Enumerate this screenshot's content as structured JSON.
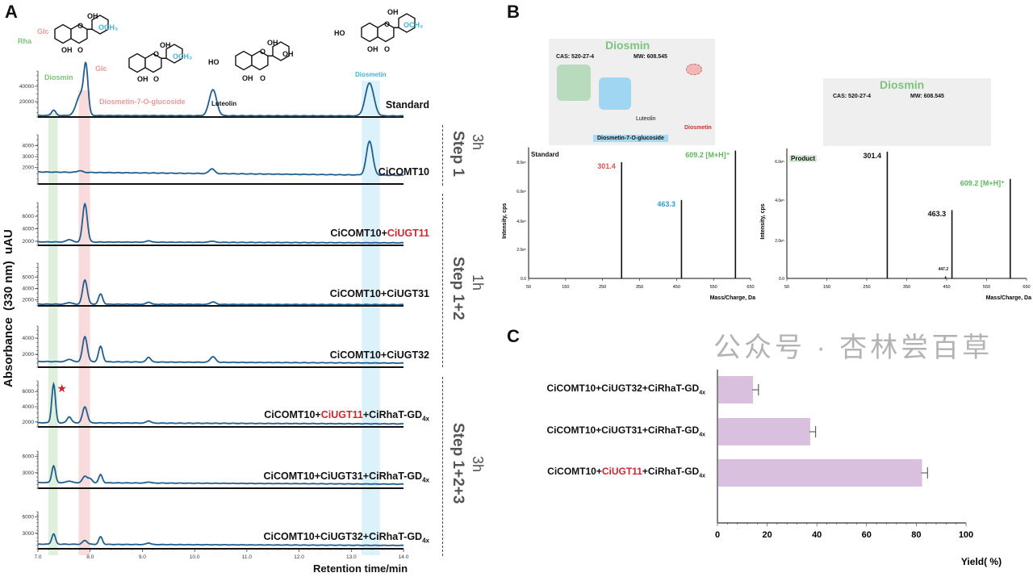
{
  "panels": {
    "a": "A",
    "b": "B",
    "c": "C"
  },
  "panel_a": {
    "y_axis_label": "Absorbance  (330 nm)  uAU",
    "x_axis_label": "Retention time/min",
    "compounds": {
      "diosmin": "Diosmin",
      "d7g": "Diosmetin-7-O-glucoside",
      "luteolin": "Luteolin",
      "diosmetin": "Diosmetin",
      "rha": "Rha",
      "glc": "Glc",
      "oh": "OH",
      "ho": "HO",
      "o": "O",
      "och3": "OCH₃"
    },
    "steps": [
      {
        "step": "Step 1",
        "time": "3h"
      },
      {
        "step": "Step 1+2",
        "time": "1h"
      },
      {
        "step": "Step 1+2+3",
        "time": "3h"
      }
    ],
    "colors": {
      "trace": "#1f5f8f",
      "diosmin_band": "#d4ecd2",
      "d7g_band": "#f8cfcf",
      "diosmetin_band": "#cfeefa",
      "star": "#c8242c"
    }
  },
  "chart_data": [
    {
      "type": "line",
      "title": "",
      "xlabel": "Retention time/min",
      "ylabel": "Absorbance (330 nm) uAU",
      "xlim": [
        7.0,
        14.0
      ],
      "x_ticks": [
        "7.0",
        "8.0",
        "9.0",
        "10.0",
        "11.0",
        "12.0",
        "13.0",
        "14.0"
      ],
      "highlight_bands": [
        {
          "name": "Diosmin",
          "range": [
            7.2,
            7.38
          ]
        },
        {
          "name": "Diosmetin-7-O-glucoside",
          "range": [
            7.78,
            8.0
          ]
        },
        {
          "name": "Diosmetin",
          "range": [
            13.2,
            13.55
          ]
        }
      ],
      "series": [
        {
          "name": "Standard",
          "label_parts": [
            "Standard"
          ],
          "ylim": [
            0,
            60000
          ],
          "y_ticks": [
            "20000",
            "40000"
          ],
          "baseline": 2000,
          "peaks": [
            [
              7.3,
              9000,
              0.04
            ],
            [
              7.82,
              30000,
              0.08
            ],
            [
              7.92,
              58000,
              0.04
            ],
            [
              10.35,
              36000,
              0.07
            ],
            [
              13.35,
              45000,
              0.08
            ]
          ]
        },
        {
          "name": "CiCOMT10",
          "label_parts": [
            "CiCOMT10"
          ],
          "ylim": [
            500,
            5000
          ],
          "y_ticks": [
            "2000",
            "3000",
            "4000"
          ],
          "baseline": 1600,
          "peaks": [
            [
              7.8,
              1750,
              0.05
            ],
            [
              10.33,
              2050,
              0.05
            ],
            [
              13.35,
              4700,
              0.06
            ]
          ]
        },
        {
          "name": "CiCOMT10+CiUGT11",
          "label_parts": [
            "CiCOMT10+",
            "CiUGT11"
          ],
          "ylim": [
            1350,
            8200
          ],
          "y_ticks": [
            "2000",
            "4000",
            "6000"
          ],
          "baseline": 1900,
          "peaks": [
            [
              7.6,
              2300,
              0.05
            ],
            [
              7.9,
              8000,
              0.045
            ],
            [
              9.12,
              2150,
              0.04
            ],
            [
              10.33,
              2100,
              0.05
            ]
          ]
        },
        {
          "name": "CiCOMT10+CiUGT31",
          "label_parts": [
            "CiCOMT10+CiUGT31"
          ],
          "ylim": [
            900,
            8500
          ],
          "y_ticks": [
            "2000",
            "4000",
            "6000"
          ],
          "baseline": 1200,
          "peaks": [
            [
              7.6,
              1500,
              0.05
            ],
            [
              7.9,
              5500,
              0.045
            ],
            [
              8.2,
              3000,
              0.04
            ],
            [
              9.12,
              1600,
              0.04
            ],
            [
              10.35,
              1650,
              0.05
            ]
          ]
        },
        {
          "name": "CiCOMT10+CiUGT32",
          "label_parts": [
            "CiCOMT10+CiUGT32"
          ],
          "ylim": [
            400,
            5500
          ],
          "y_ticks": [
            "2000",
            "4000"
          ],
          "baseline": 1100,
          "peaks": [
            [
              7.6,
              1400,
              0.05
            ],
            [
              7.9,
              4200,
              0.045
            ],
            [
              8.2,
              3000,
              0.04
            ],
            [
              9.12,
              1700,
              0.04
            ],
            [
              10.35,
              1800,
              0.05
            ]
          ]
        },
        {
          "name": "CiCOMT10+CiUGT11+CiRhaT-GD4x",
          "label_parts": [
            "CiCOMT10+",
            "CiUGT11",
            "+CiRhaT-GD",
            "4x"
          ],
          "ylim": [
            1350,
            7400
          ],
          "y_ticks": [
            "2000",
            "4000",
            "6000"
          ],
          "baseline": 1900,
          "star": 7.3,
          "peaks": [
            [
              7.3,
              7000,
              0.035
            ],
            [
              7.6,
              2700,
              0.04
            ],
            [
              7.9,
              4000,
              0.045
            ],
            [
              9.12,
              2200,
              0.04
            ]
          ]
        },
        {
          "name": "CiCOMT10+CiUGT31+CiRhaT-GD4x",
          "label_parts": [
            "CiCOMT10+CiUGT31+CiRhaT-GD",
            "4x"
          ],
          "ylim": [
            150,
            7000
          ],
          "y_ticks": [
            "3000",
            "6000"
          ],
          "baseline": 1200,
          "peaks": [
            [
              7.3,
              4300,
              0.035
            ],
            [
              7.6,
              1500,
              0.05
            ],
            [
              7.9,
              2400,
              0.045
            ],
            [
              8.0,
              1900,
              0.04
            ],
            [
              8.2,
              2700,
              0.035
            ],
            [
              9.12,
              1400,
              0.04
            ]
          ]
        },
        {
          "name": "CiCOMT10+CiUGT32+CiRhaT-GD4x",
          "label_parts": [
            "CiCOMT10+CiUGT32+CiRhaT-GD",
            "4x"
          ],
          "ylim": [
            150,
            7000
          ],
          "y_ticks": [
            "3000",
            "6000"
          ],
          "baseline": 1000,
          "peaks": [
            [
              7.3,
              2900,
              0.035
            ],
            [
              7.9,
              1700,
              0.045
            ],
            [
              8.2,
              2400,
              0.035
            ],
            [
              9.12,
              1300,
              0.04
            ]
          ]
        }
      ]
    },
    {
      "type": "bar",
      "title": "Standard",
      "xlabel": "Mass/Charge, Da",
      "ylabel": "Intensity, cps",
      "xlim": [
        50,
        650
      ],
      "x_ticks": [
        "50",
        "150",
        "250",
        "350",
        "450",
        "550",
        "650"
      ],
      "ylim": [
        0,
        8.8
      ],
      "y_ticks": [
        "0.0",
        "2.0e⁵",
        "4.0e⁵",
        "6.0e⁵",
        "8.0e⁵"
      ],
      "peaks": [
        {
          "mz": 301.4,
          "intensity": 8.0,
          "label": "301.4",
          "color": "#d9534f"
        },
        {
          "mz": 463.3,
          "intensity": 5.4,
          "label": "463.3",
          "color": "#2a9fd6"
        },
        {
          "mz": 609.2,
          "intensity": 8.8,
          "label": "609.2 [M+H]⁺",
          "color": "#5cb85c"
        }
      ],
      "structure": {
        "name": "Diosmin",
        "cas": "CAS:  520-27-4",
        "mw": "MW: 608.545",
        "fragments": [
          "Luteolin",
          "Diosmetin",
          "Diosmetin-7-O-glucoside"
        ]
      }
    },
    {
      "type": "bar",
      "title": "Product",
      "xlabel": "Mass/Charge, Da",
      "ylabel": "Intensity, cps",
      "xlim": [
        50,
        650
      ],
      "x_ticks": [
        "50",
        "150",
        "250",
        "350",
        "450",
        "550",
        "650"
      ],
      "ylim": [
        0,
        6.5
      ],
      "y_ticks": [
        "0.0",
        "2.0e⁵",
        "4.0e⁵",
        "6.0e⁵"
      ],
      "peaks": [
        {
          "mz": 301.4,
          "intensity": 6.5,
          "label": "301.4",
          "color": "#111111"
        },
        {
          "mz": 447.2,
          "intensity": 0.1,
          "label": "447.2",
          "color": "#111111"
        },
        {
          "mz": 463.3,
          "intensity": 3.5,
          "label": "463.3",
          "color": "#111111"
        },
        {
          "mz": 609.2,
          "intensity": 5.1,
          "label": "609.2 [M+H]⁺",
          "color": "#5cb85c"
        }
      ],
      "structure": {
        "name": "Diosmin",
        "cas": "CAS:  520-27-4",
        "mw": "MW: 608.545"
      }
    },
    {
      "type": "bar",
      "orientation": "horizontal",
      "title": "",
      "xlabel": "Yield( %)",
      "ylabel": "",
      "xlim": [
        0,
        100
      ],
      "x_ticks": [
        "0",
        "20",
        "40",
        "60",
        "80",
        "100"
      ],
      "categories": [
        "CiCOMT10+CiUGT32+CiRhaT-GD4x",
        "CiCOMT10+CiUGT31+CiRhaT-GD4x",
        "CiCOMT10+CiUGT11+CiRhaT-GD4x"
      ],
      "category_parts": [
        [
          "CiCOMT10+CiUGT32+CiRhaT-GD",
          "4x"
        ],
        [
          "CiCOMT10+CiUGT31+CiRhaT-GD",
          "4x"
        ],
        [
          "CiCOMT10+",
          "CiUGT11",
          "+CiRhaT-GD",
          "4x"
        ]
      ],
      "values": [
        14,
        37,
        82
      ],
      "errors": [
        2.5,
        2.5,
        2.5
      ],
      "bar_color": "#d8c0de"
    }
  ],
  "watermark": "公众号 · 杏林尝百草"
}
